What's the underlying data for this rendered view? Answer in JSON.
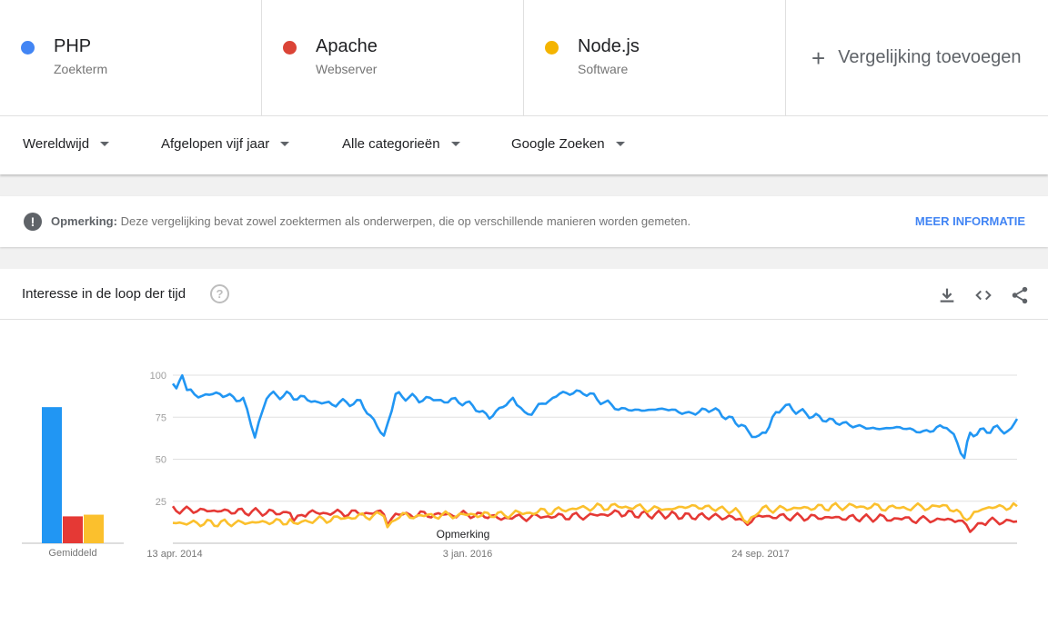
{
  "terms": [
    {
      "name": "PHP",
      "type": "Zoekterm",
      "color": "#4285f4"
    },
    {
      "name": "Apache",
      "type": "Webserver",
      "color": "#db4437"
    },
    {
      "name": "Node.js",
      "type": "Software",
      "color": "#f4b400"
    }
  ],
  "add_comparison": "Vergelijking toevoegen",
  "filters": {
    "region": "Wereldwijd",
    "period": "Afgelopen vijf jaar",
    "category": "Alle categorieën",
    "source": "Google Zoeken"
  },
  "note": {
    "label": "Opmerking:",
    "text": " Deze vergelijking bevat zowel zoektermen als onderwerpen, die op verschillende manieren worden gemeten.",
    "link": "MEER INFORMATIE"
  },
  "card_title": "Interesse in de loop der tijd",
  "icons": [
    "help-icon",
    "download-icon",
    "embed-icon",
    "share-icon"
  ],
  "chart_data": {
    "type": "line",
    "x_ticks": [
      "13 apr. 2014",
      "3 jan. 2016",
      "24 sep. 2017"
    ],
    "y_ticks": [
      100,
      75,
      50,
      25
    ],
    "ylim": [
      0,
      100
    ],
    "grid": true,
    "annotation": "Opmerking",
    "average_label": "Gemiddeld",
    "averages": [
      81,
      16,
      17
    ],
    "series": [
      {
        "name": "PHP",
        "color": "#2196f3",
        "keypoints": [
          [
            0,
            95
          ],
          [
            3,
            92
          ],
          [
            8,
            100
          ],
          [
            12,
            90
          ],
          [
            25,
            88
          ],
          [
            40,
            89
          ],
          [
            60,
            85
          ],
          [
            70,
            64
          ],
          [
            80,
            88
          ],
          [
            100,
            88
          ],
          [
            130,
            83
          ],
          [
            160,
            84
          ],
          [
            180,
            64
          ],
          [
            190,
            88
          ],
          [
            210,
            86
          ],
          [
            250,
            84
          ],
          [
            270,
            75
          ],
          [
            290,
            86
          ],
          [
            300,
            76
          ],
          [
            330,
            89
          ],
          [
            350,
            90
          ],
          [
            380,
            80
          ],
          [
            400,
            79
          ],
          [
            420,
            80
          ],
          [
            440,
            77
          ],
          [
            460,
            80
          ],
          [
            480,
            72
          ],
          [
            485,
            70
          ],
          [
            500,
            62
          ],
          [
            520,
            82
          ],
          [
            540,
            77
          ],
          [
            560,
            73
          ],
          [
            580,
            70
          ],
          [
            600,
            68
          ],
          [
            620,
            69
          ],
          [
            640,
            66
          ],
          [
            660,
            70
          ],
          [
            675,
            52
          ],
          [
            680,
            65
          ],
          [
            700,
            68
          ],
          [
            715,
            67
          ],
          [
            720,
            74
          ]
        ]
      },
      {
        "name": "Apache",
        "color": "#e53935",
        "keypoints": [
          [
            0,
            20
          ],
          [
            50,
            19
          ],
          [
            100,
            18
          ],
          [
            103,
            13
          ],
          [
            110,
            18
          ],
          [
            180,
            18
          ],
          [
            183,
            13
          ],
          [
            190,
            17
          ],
          [
            260,
            17
          ],
          [
            280,
            15
          ],
          [
            320,
            16
          ],
          [
            350,
            16
          ],
          [
            380,
            18
          ],
          [
            400,
            17
          ],
          [
            420,
            17
          ],
          [
            440,
            16
          ],
          [
            460,
            16
          ],
          [
            480,
            15
          ],
          [
            490,
            13
          ],
          [
            500,
            16
          ],
          [
            580,
            15
          ],
          [
            600,
            15
          ],
          [
            640,
            14
          ],
          [
            670,
            14
          ],
          [
            680,
            7
          ],
          [
            690,
            13
          ],
          [
            720,
            13
          ]
        ]
      },
      {
        "name": "Node.js",
        "color": "#fbc02d",
        "keypoints": [
          [
            0,
            12
          ],
          [
            50,
            12
          ],
          [
            100,
            13
          ],
          [
            103,
            10
          ],
          [
            110,
            13
          ],
          [
            180,
            17
          ],
          [
            183,
            10
          ],
          [
            190,
            16
          ],
          [
            260,
            17
          ],
          [
            280,
            17
          ],
          [
            320,
            19
          ],
          [
            350,
            21
          ],
          [
            380,
            22
          ],
          [
            420,
            20
          ],
          [
            440,
            22
          ],
          [
            460,
            21
          ],
          [
            480,
            19
          ],
          [
            490,
            13
          ],
          [
            500,
            20
          ],
          [
            580,
            22
          ],
          [
            620,
            21
          ],
          [
            660,
            22
          ],
          [
            680,
            14
          ],
          [
            690,
            21
          ],
          [
            720,
            22
          ]
        ]
      }
    ]
  }
}
